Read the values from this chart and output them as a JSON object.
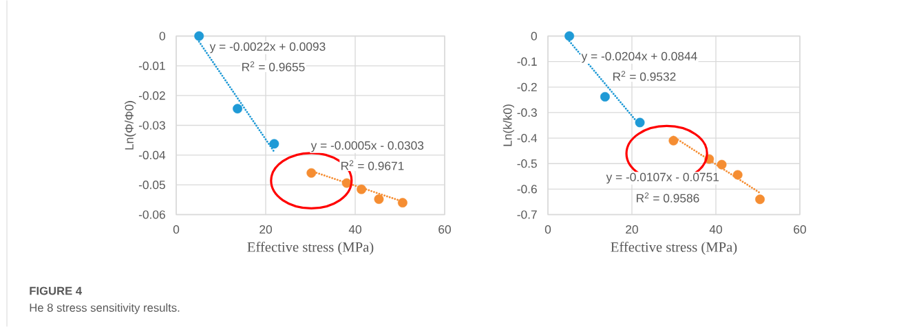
{
  "chart_data": [
    {
      "type": "scatter",
      "xlabel": "Effective stress (MPa)",
      "ylabel": "Ln(Φ/Φ0)",
      "xlim": [
        0,
        60
      ],
      "xticks": [
        0,
        20,
        40,
        60
      ],
      "ylim": [
        -0.06,
        0
      ],
      "yticks": [
        -0.06,
        -0.05,
        -0.04,
        -0.03,
        -0.02,
        -0.01,
        0
      ],
      "grid": true,
      "series": [
        {
          "type": "scatter",
          "marker": "circle",
          "color": "#1f9ad6",
          "x": [
            5.1,
            13.7,
            21.9
          ],
          "values": [
            0,
            -0.0244,
            -0.0362
          ]
        },
        {
          "type": "line",
          "line_style": "dotted",
          "marker": "none",
          "color": "#1f9ad6",
          "x": [
            5.1,
            21.9
          ],
          "values": [
            -0.0019,
            -0.0389
          ]
        },
        {
          "type": "scatter",
          "marker": "circle",
          "color": "#f58d32",
          "x": [
            30.2,
            38.1,
            41.4,
            45.3,
            50.6
          ],
          "values": [
            -0.046,
            -0.0494,
            -0.0515,
            -0.0548,
            -0.056
          ]
        },
        {
          "type": "line",
          "line_style": "dotted",
          "marker": "none",
          "color": "#f58d32",
          "x": [
            30.2,
            50.6
          ],
          "values": [
            -0.0454,
            -0.0556
          ]
        }
      ],
      "annotations": [
        "y = -0.0022x + 0.0093",
        "R$^{2}$ = 0.9655",
        "y = -0.0005x - 0.0303",
        "R$^{2}$ = 0.9671",
        "**FIGURE 4**",
        "He 8 stress sensitivity results."
      ]
    },
    {
      "type": "scatter",
      "xlabel": "Effective stress (MPa)",
      "ylabel": "Ln(k/k0)",
      "xlim": [
        0,
        60
      ],
      "xticks": [
        0,
        20,
        40,
        60
      ],
      "ylim": [
        -0.7,
        0
      ],
      "yticks": [
        -0.7,
        -0.6,
        -0.5,
        -0.4,
        -0.3,
        -0.2,
        -0.1,
        0
      ],
      "grid": true,
      "series": [
        {
          "type": "scatter",
          "marker": "circle",
          "color": "#1f9ad6",
          "x": [
            5.1,
            13.6,
            21.9
          ],
          "values": [
            0,
            -0.238,
            -0.339
          ]
        },
        {
          "type": "line",
          "line_style": "dotted",
          "marker": "none",
          "color": "#1f9ad6",
          "x": [
            5.1,
            21.9
          ],
          "values": [
            -0.02,
            -0.35
          ]
        },
        {
          "type": "scatter",
          "marker": "circle",
          "color": "#f58d32",
          "x": [
            29.9,
            38.4,
            41.4,
            45.2,
            50.5
          ],
          "values": [
            -0.41,
            -0.482,
            -0.504,
            -0.544,
            -0.64
          ]
        },
        {
          "type": "line",
          "line_style": "dotted",
          "marker": "none",
          "color": "#f58d32",
          "x": [
            29.9,
            50.5
          ],
          "values": [
            -0.395,
            -0.615
          ]
        }
      ],
      "annotations": [
        "y = -0.0204x + 0.0844",
        "R$^{2}$ = 0.9532",
        "y = -0.0107x - 0.0751",
        "R$^{2}$ = 0.9586"
      ]
    }
  ]
}
